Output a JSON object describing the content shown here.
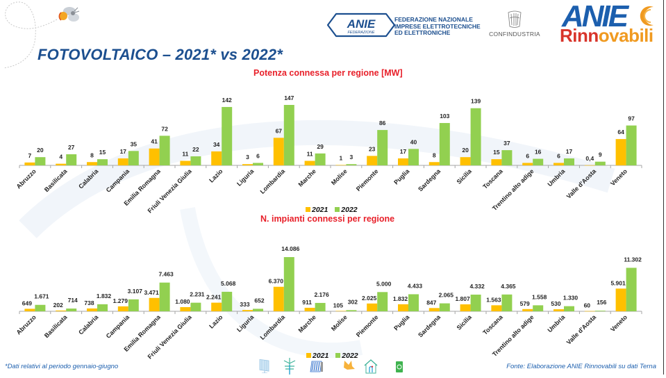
{
  "page": {
    "title": "FOTOVOLTAICO – 2021* vs 2022*",
    "footnote": "*Dati relativi al periodo gennaio-giugno",
    "source": "Fonte: Elaborazione ANIE Rinnovabili su dati Terna"
  },
  "logos": {
    "anie_federazione": {
      "main": "ANIE",
      "sub": "FEDERAZIONE",
      "text": "FEDERAZIONE NAZIONALE\nIMPRESE ELETTROTECNICHE\nED ELETTRONICHE"
    },
    "confindustria": "CONFINDUSTRIA",
    "anie_rinnovabili": {
      "top": "ANIE",
      "bottom_part1": "Rinn",
      "bottom_part2": "ovabili"
    }
  },
  "colors": {
    "series_2021": "#ffc000",
    "series_2022": "#92d050",
    "title_blue": "#1c4f8f",
    "chart_title_red": "#e8202a"
  },
  "bottom_icons": [
    "solar-panel-icon",
    "wind-turbine-icon",
    "hydro-icon",
    "bird-icon",
    "house-heatpump-icon",
    "recycle-bin-icon"
  ],
  "chart_data": [
    {
      "type": "bar",
      "title": "Potenza connessa per regione [MW]",
      "xlabel": "",
      "ylabel": "",
      "ylim": [
        0,
        147
      ],
      "grid": false,
      "legend": "bottom",
      "categories": [
        "Abruzzo",
        "Basilicata",
        "Calabria",
        "Campania",
        "Emilia Romagna",
        "Friuli Venezia Giulia",
        "Lazio",
        "Liguria",
        "Lombardia",
        "Marche",
        "Molise",
        "Piemonte",
        "Puglia",
        "Sardegna",
        "Sicilia",
        "Toscana",
        "Trentino alto adige",
        "Umbria",
        "Valle d'Aosta",
        "Veneto"
      ],
      "series": [
        {
          "name": "2021",
          "values": [
            7,
            4,
            8,
            17,
            41,
            11,
            34,
            3,
            67,
            11,
            1,
            23,
            17,
            8,
            20,
            15,
            6,
            6,
            0.4,
            64
          ],
          "labels": [
            "7",
            "4",
            "8",
            "17",
            "41",
            "11",
            "34",
            "3",
            "67",
            "11",
            "1",
            "23",
            "17",
            "8",
            "20",
            "15",
            "6",
            "6",
            "0,4",
            "64"
          ]
        },
        {
          "name": "2022",
          "values": [
            20,
            27,
            15,
            35,
            72,
            22,
            142,
            6,
            147,
            29,
            3,
            86,
            40,
            103,
            139,
            37,
            16,
            17,
            9,
            97
          ],
          "labels": [
            "20",
            "27",
            "15",
            "35",
            "72",
            "22",
            "142",
            "6",
            "147",
            "29",
            "3",
            "86",
            "40",
            "103",
            "139",
            "37",
            "16",
            "17",
            "9",
            "97"
          ]
        }
      ]
    },
    {
      "type": "bar",
      "title": "N. impianti connessi per regione",
      "xlabel": "",
      "ylabel": "",
      "ylim": [
        0,
        14086
      ],
      "grid": false,
      "legend": "bottom",
      "categories": [
        "Abruzzo",
        "Basilicata",
        "Calabria",
        "Campania",
        "Emilia Romagna",
        "Friuli Venezia Giulia",
        "Lazio",
        "Liguria",
        "Lombardia",
        "Marche",
        "Molise",
        "Piemonte",
        "Puglia",
        "Sardegna",
        "Sicilia",
        "Toscana",
        "Trentino alto adige",
        "Umbria",
        "Valle d'Aosta",
        "Veneto"
      ],
      "series": [
        {
          "name": "2021",
          "values": [
            649,
            202,
            738,
            1279,
            3471,
            1080,
            2241,
            333,
            6370,
            911,
            105,
            2025,
            1832,
            847,
            1807,
            1563,
            579,
            530,
            60,
            5901
          ],
          "labels": [
            "649",
            "202",
            "738",
            "1.279",
            "3.471",
            "1.080",
            "2.241",
            "333",
            "6.370",
            "911",
            "105",
            "2.025",
            "1.832",
            "847",
            "1.807",
            "1.563",
            "579",
            "530",
            "60",
            "5.901"
          ]
        },
        {
          "name": "2022",
          "values": [
            1671,
            714,
            1832,
            3107,
            7463,
            2231,
            5068,
            652,
            14086,
            2176,
            302,
            5000,
            4433,
            2065,
            4332,
            4365,
            1558,
            1330,
            156,
            11302
          ],
          "labels": [
            "1.671",
            "714",
            "1.832",
            "3.107",
            "7.463",
            "2.231",
            "5.068",
            "652",
            "14.086",
            "2.176",
            "302",
            "5.000",
            "4.433",
            "2.065",
            "4.332",
            "4.365",
            "1.558",
            "1.330",
            "156",
            "11.302"
          ]
        }
      ]
    }
  ]
}
